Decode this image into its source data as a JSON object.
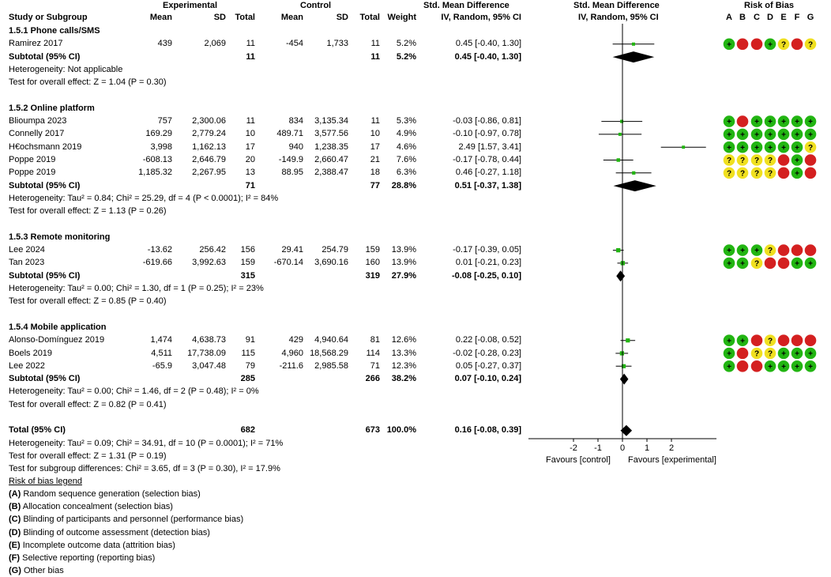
{
  "header": {
    "experimental": "Experimental",
    "control": "Control",
    "smd_group": "Std. Mean Difference",
    "smd_plot": "Std. Mean Difference",
    "rob": "Risk of Bias",
    "study": "Study or Subgroup",
    "mean": "Mean",
    "sd": "SD",
    "total": "Total",
    "weight": "Weight",
    "method": "IV, Random, 95% CI",
    "method_plot": "IV, Random, 95% CI",
    "rob_letters": [
      "A",
      "B",
      "C",
      "D",
      "E",
      "F",
      "G"
    ]
  },
  "chart_data": {
    "type": "forest",
    "x_axis": {
      "ticks": [
        "-2",
        "-1",
        "0",
        "1",
        "2"
      ],
      "tick_values": [
        -2,
        -1,
        0,
        1,
        2
      ],
      "range": [
        -3.8,
        3.8
      ],
      "left_label": "Favours [control]",
      "right_label": "Favours [experimental]"
    },
    "rows": [
      {
        "kind": "group",
        "label": "1.5.1 Phone calls/SMS"
      },
      {
        "kind": "study",
        "label": "Ramirez 2017",
        "e_mean": "439",
        "e_sd": "2,069",
        "e_total": "11",
        "c_mean": "-454",
        "c_sd": "1,733",
        "c_total": "11",
        "weight": "5.2%",
        "ci_text": "0.45 [-0.40, 1.30]",
        "smd": 0.45,
        "lo": -0.4,
        "hi": 1.3,
        "rob": [
          "+",
          "-",
          "-",
          "+",
          "?",
          "-",
          "?"
        ]
      },
      {
        "kind": "subtotal",
        "label": "Subtotal (95% CI)",
        "e_total": "11",
        "c_total": "11",
        "weight": "5.2%",
        "ci_text": "0.45 [-0.40, 1.30]",
        "smd": 0.45,
        "lo": -0.4,
        "hi": 1.3
      },
      {
        "kind": "note",
        "label": "Heterogeneity: Not applicable"
      },
      {
        "kind": "note",
        "label": "Test for overall effect: Z = 1.04 (P = 0.30)"
      },
      {
        "kind": "blank"
      },
      {
        "kind": "group",
        "label": "1.5.2 Online platform"
      },
      {
        "kind": "study",
        "label": "Blioumpa 2023",
        "e_mean": "757",
        "e_sd": "2,300.06",
        "e_total": "11",
        "c_mean": "834",
        "c_sd": "3,135.34",
        "c_total": "11",
        "weight": "5.3%",
        "ci_text": "-0.03 [-0.86, 0.81]",
        "smd": -0.03,
        "lo": -0.86,
        "hi": 0.81,
        "rob": [
          "+",
          "-",
          "+",
          "+",
          "+",
          "+",
          "+"
        ]
      },
      {
        "kind": "study",
        "label": "Connelly 2017",
        "e_mean": "169.29",
        "e_sd": "2,779.24",
        "e_total": "10",
        "c_mean": "489.71",
        "c_sd": "3,577.56",
        "c_total": "10",
        "weight": "4.9%",
        "ci_text": "-0.10 [-0.97, 0.78]",
        "smd": -0.1,
        "lo": -0.97,
        "hi": 0.78,
        "rob": [
          "+",
          "+",
          "+",
          "+",
          "+",
          "+",
          "+"
        ]
      },
      {
        "kind": "study",
        "label": "H€ochsmann 2019",
        "e_mean": "3,998",
        "e_sd": "1,162.13",
        "e_total": "17",
        "c_mean": "940",
        "c_sd": "1,238.35",
        "c_total": "17",
        "weight": "4.6%",
        "ci_text": "2.49 [1.57, 3.41]",
        "smd": 2.49,
        "lo": 1.57,
        "hi": 3.41,
        "rob": [
          "+",
          "+",
          "+",
          "+",
          "+",
          "+",
          "?"
        ]
      },
      {
        "kind": "study",
        "label": "Poppe 2019",
        "e_mean": "-608.13",
        "e_sd": "2,646.79",
        "e_total": "20",
        "c_mean": "-149.9",
        "c_sd": "2,660.47",
        "c_total": "21",
        "weight": "7.6%",
        "ci_text": "-0.17 [-0.78, 0.44]",
        "smd": -0.17,
        "lo": -0.78,
        "hi": 0.44,
        "rob": [
          "?",
          "?",
          "?",
          "?",
          "-",
          "+",
          "-"
        ]
      },
      {
        "kind": "study",
        "label": "Poppe 2019",
        "e_mean": "1,185.32",
        "e_sd": "2,267.95",
        "e_total": "13",
        "c_mean": "88.95",
        "c_sd": "2,388.47",
        "c_total": "18",
        "weight": "6.3%",
        "ci_text": "0.46 [-0.27, 1.18]",
        "smd": 0.46,
        "lo": -0.27,
        "hi": 1.18,
        "rob": [
          "?",
          "?",
          "?",
          "?",
          "-",
          "+",
          "-"
        ]
      },
      {
        "kind": "subtotal",
        "label": "Subtotal (95% CI)",
        "e_total": "71",
        "c_total": "77",
        "weight": "28.8%",
        "ci_text": "0.51 [-0.37, 1.38]",
        "smd": 0.51,
        "lo": -0.37,
        "hi": 1.38
      },
      {
        "kind": "note",
        "label": "Heterogeneity: Tau² = 0.84; Chi² = 25.29, df = 4 (P < 0.0001); I² = 84%"
      },
      {
        "kind": "note",
        "label": "Test for overall effect: Z = 1.13 (P = 0.26)"
      },
      {
        "kind": "blank"
      },
      {
        "kind": "group",
        "label": "1.5.3 Remote monitoring"
      },
      {
        "kind": "study",
        "label": "Lee 2024",
        "e_mean": "-13.62",
        "e_sd": "256.42",
        "e_total": "156",
        "c_mean": "29.41",
        "c_sd": "254.79",
        "c_total": "159",
        "weight": "13.9%",
        "ci_text": "-0.17 [-0.39, 0.05]",
        "smd": -0.17,
        "lo": -0.39,
        "hi": 0.05,
        "rob": [
          "+",
          "+",
          "+",
          "?",
          "-",
          "-",
          "-"
        ]
      },
      {
        "kind": "study",
        "label": "Tan 2023",
        "e_mean": "-619.66",
        "e_sd": "3,992.63",
        "e_total": "159",
        "c_mean": "-670.14",
        "c_sd": "3,690.16",
        "c_total": "160",
        "weight": "13.9%",
        "ci_text": "0.01 [-0.21, 0.23]",
        "smd": 0.01,
        "lo": -0.21,
        "hi": 0.23,
        "rob": [
          "+",
          "+",
          "?",
          "-",
          "-",
          "+",
          "+"
        ]
      },
      {
        "kind": "subtotal",
        "label": "Subtotal (95% CI)",
        "e_total": "315",
        "c_total": "319",
        "weight": "27.9%",
        "ci_text": "-0.08 [-0.25, 0.10]",
        "smd": -0.08,
        "lo": -0.25,
        "hi": 0.1
      },
      {
        "kind": "note",
        "label": "Heterogeneity: Tau² = 0.00; Chi² = 1.30, df = 1 (P = 0.25); I² = 23%"
      },
      {
        "kind": "note",
        "label": "Test for overall effect: Z = 0.85 (P = 0.40)"
      },
      {
        "kind": "blank"
      },
      {
        "kind": "group",
        "label": "1.5.4 Mobile application"
      },
      {
        "kind": "study",
        "label": "Alonso-Domínguez 2019",
        "e_mean": "1,474",
        "e_sd": "4,638.73",
        "e_total": "91",
        "c_mean": "429",
        "c_sd": "4,940.64",
        "c_total": "81",
        "weight": "12.6%",
        "ci_text": "0.22 [-0.08, 0.52]",
        "smd": 0.22,
        "lo": -0.08,
        "hi": 0.52,
        "rob": [
          "+",
          "+",
          "-",
          "?",
          "-",
          "-",
          "-"
        ]
      },
      {
        "kind": "study",
        "label": "Boels 2019",
        "e_mean": "4,511",
        "e_sd": "17,738.09",
        "e_total": "115",
        "c_mean": "4,960",
        "c_sd": "18,568.29",
        "c_total": "114",
        "weight": "13.3%",
        "ci_text": "-0.02 [-0.28, 0.23]",
        "smd": -0.02,
        "lo": -0.28,
        "hi": 0.23,
        "rob": [
          "+",
          "-",
          "?",
          "?",
          "+",
          "+",
          "+"
        ]
      },
      {
        "kind": "study",
        "label": "Lee 2022",
        "e_mean": "-65.9",
        "e_sd": "3,047.48",
        "e_total": "79",
        "c_mean": "-211.6",
        "c_sd": "2,985.58",
        "c_total": "71",
        "weight": "12.3%",
        "ci_text": "0.05 [-0.27, 0.37]",
        "smd": 0.05,
        "lo": -0.27,
        "hi": 0.37,
        "rob": [
          "+",
          "-",
          "-",
          "+",
          "+",
          "+",
          "+"
        ]
      },
      {
        "kind": "subtotal",
        "label": "Subtotal (95% CI)",
        "e_total": "285",
        "c_total": "266",
        "weight": "38.2%",
        "ci_text": "0.07 [-0.10, 0.24]",
        "smd": 0.07,
        "lo": -0.1,
        "hi": 0.24
      },
      {
        "kind": "note",
        "label": "Heterogeneity: Tau² = 0.00; Chi² = 1.46, df = 2 (P = 0.48); I² = 0%"
      },
      {
        "kind": "note",
        "label": "Test for overall effect: Z = 0.82 (P = 0.41)"
      },
      {
        "kind": "blank"
      },
      {
        "kind": "total",
        "label": "Total (95% CI)",
        "e_total": "682",
        "c_total": "673",
        "weight": "100.0%",
        "ci_text": "0.16 [-0.08, 0.39]",
        "smd": 0.16,
        "lo": -0.08,
        "hi": 0.39
      },
      {
        "kind": "note",
        "label": "Heterogeneity: Tau² = 0.09; Chi² = 34.91, df = 10 (P = 0.0001); I² = 71%"
      },
      {
        "kind": "note",
        "label": "Test for overall effect: Z = 1.31 (P = 0.19)"
      },
      {
        "kind": "note",
        "label": "Test for subgroup differences: Chi² = 3.65, df = 3 (P = 0.30), I² = 17.9%"
      }
    ]
  },
  "legend": {
    "title": "Risk of bias legend",
    "items": [
      {
        "key": "(A)",
        "text": " Random sequence generation (selection bias)"
      },
      {
        "key": "(B)",
        "text": " Allocation concealment (selection bias)"
      },
      {
        "key": "(C)",
        "text": " Blinding of participants and personnel (performance bias)"
      },
      {
        "key": "(D)",
        "text": " Blinding of outcome assessment (detection bias)"
      },
      {
        "key": "(E)",
        "text": " Incomplete outcome data (attrition bias)"
      },
      {
        "key": "(F)",
        "text": " Selective reporting (reporting bias)"
      },
      {
        "key": "(G)",
        "text": " Other bias"
      }
    ]
  },
  "colors": {
    "low": "#22b512",
    "high": "#d42020",
    "unclear": "#f0e020",
    "point": "#22b512",
    "line": "#000000"
  }
}
